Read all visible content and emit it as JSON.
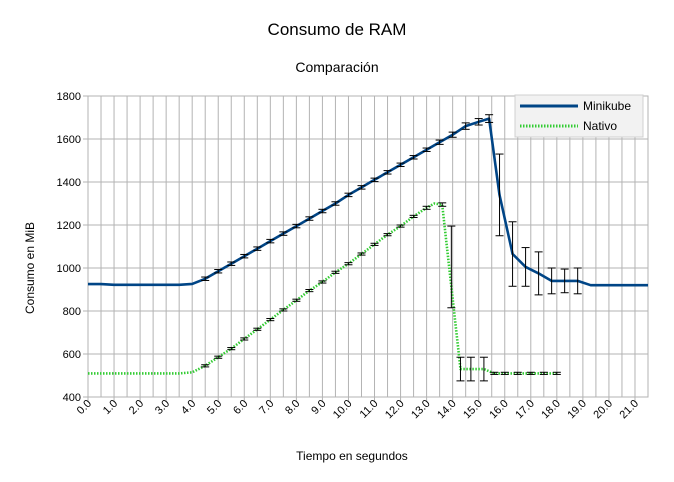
{
  "chart_data": {
    "type": "line",
    "title": "Consumo de RAM",
    "subtitle": "Comparación",
    "xlabel": "Tiempo en segundos",
    "ylabel": "Consumo en MiB",
    "ylim": [
      400,
      1800
    ],
    "yticks": [
      400,
      600,
      800,
      1000,
      1200,
      1400,
      1600,
      1800
    ],
    "xlim": [
      0,
      21.5
    ],
    "xticks": [
      "0.0",
      "1.0",
      "2.0",
      "3.0",
      "4.0",
      "5.0",
      "6.0",
      "7.0",
      "8.0",
      "9.0",
      "10.0",
      "11.0",
      "12.0",
      "13.0",
      "14.0",
      "15.0",
      "16.0",
      "17.0",
      "18.0",
      "19.0",
      "20.0",
      "21.0"
    ],
    "grid": true,
    "legend_position": "top-right",
    "series": [
      {
        "name": "Minikube",
        "color": "#004586",
        "style": "solid",
        "points": [
          [
            0,
            925
          ],
          [
            0.5,
            925
          ],
          [
            1,
            922
          ],
          [
            1.5,
            922
          ],
          [
            2,
            922
          ],
          [
            2.5,
            922
          ],
          [
            3,
            922
          ],
          [
            3.5,
            922
          ],
          [
            4,
            926
          ],
          [
            4.5,
            950
          ],
          [
            5,
            985
          ],
          [
            5.5,
            1020
          ],
          [
            6,
            1055
          ],
          [
            6.5,
            1090
          ],
          [
            7,
            1125
          ],
          [
            7.5,
            1160
          ],
          [
            8,
            1195
          ],
          [
            8.5,
            1230
          ],
          [
            9,
            1265
          ],
          [
            9.5,
            1300
          ],
          [
            10,
            1340
          ],
          [
            10.5,
            1375
          ],
          [
            11,
            1410
          ],
          [
            11.5,
            1445
          ],
          [
            12,
            1480
          ],
          [
            12.5,
            1515
          ],
          [
            13,
            1550
          ],
          [
            13.5,
            1585
          ],
          [
            14,
            1620
          ],
          [
            14.5,
            1660
          ],
          [
            15,
            1680
          ],
          [
            15.4,
            1695
          ],
          [
            15.8,
            1340
          ],
          [
            16.3,
            1065
          ],
          [
            16.8,
            1005
          ],
          [
            17.3,
            975
          ],
          [
            17.8,
            940
          ],
          [
            18.3,
            940
          ],
          [
            18.8,
            940
          ],
          [
            19.3,
            920
          ],
          [
            19.8,
            920
          ],
          [
            20.3,
            920
          ],
          [
            20.8,
            920
          ],
          [
            21.5,
            920
          ]
        ],
        "error_bars": [
          [
            4.5,
            950,
            8
          ],
          [
            5,
            985,
            8
          ],
          [
            5.5,
            1020,
            8
          ],
          [
            6,
            1055,
            8
          ],
          [
            6.5,
            1090,
            8
          ],
          [
            7,
            1125,
            8
          ],
          [
            7.5,
            1160,
            8
          ],
          [
            8,
            1195,
            8
          ],
          [
            8.5,
            1230,
            8
          ],
          [
            9,
            1265,
            8
          ],
          [
            9.5,
            1300,
            8
          ],
          [
            10,
            1340,
            8
          ],
          [
            10.5,
            1375,
            8
          ],
          [
            11,
            1410,
            8
          ],
          [
            11.5,
            1445,
            8
          ],
          [
            12,
            1480,
            8
          ],
          [
            12.5,
            1515,
            8
          ],
          [
            13,
            1550,
            8
          ],
          [
            13.5,
            1585,
            10
          ],
          [
            14,
            1620,
            12
          ],
          [
            14.5,
            1660,
            15
          ],
          [
            15,
            1680,
            15
          ],
          [
            15.4,
            1695,
            18
          ],
          [
            15.8,
            1340,
            190
          ],
          [
            16.3,
            1065,
            150
          ],
          [
            16.8,
            1005,
            90
          ],
          [
            17.3,
            975,
            100
          ],
          [
            17.8,
            940,
            60
          ],
          [
            18.3,
            940,
            55
          ],
          [
            18.8,
            940,
            60
          ]
        ]
      },
      {
        "name": "Nativo",
        "color": "#33cc33",
        "style": "dotted",
        "points": [
          [
            0,
            510
          ],
          [
            0.5,
            510
          ],
          [
            1,
            510
          ],
          [
            1.5,
            510
          ],
          [
            2,
            510
          ],
          [
            2.5,
            510
          ],
          [
            3,
            510
          ],
          [
            3.5,
            510
          ],
          [
            4,
            515
          ],
          [
            4.5,
            545
          ],
          [
            5,
            585
          ],
          [
            5.5,
            625
          ],
          [
            6,
            670
          ],
          [
            6.5,
            715
          ],
          [
            7,
            760
          ],
          [
            7.5,
            805
          ],
          [
            8,
            850
          ],
          [
            8.5,
            895
          ],
          [
            9,
            935
          ],
          [
            9.5,
            980
          ],
          [
            10,
            1020
          ],
          [
            10.5,
            1065
          ],
          [
            11,
            1110
          ],
          [
            11.5,
            1155
          ],
          [
            12,
            1195
          ],
          [
            12.5,
            1240
          ],
          [
            13,
            1280
          ],
          [
            13.3,
            1300
          ],
          [
            13.6,
            1295
          ],
          [
            14.3,
            530
          ],
          [
            14.7,
            530
          ],
          [
            15.2,
            530
          ],
          [
            15.6,
            510
          ],
          [
            16,
            510
          ],
          [
            16.5,
            510
          ],
          [
            17,
            510
          ],
          [
            17.5,
            510
          ],
          [
            18,
            510
          ]
        ],
        "error_bars": [
          [
            4.5,
            545,
            5
          ],
          [
            5,
            585,
            5
          ],
          [
            5.5,
            625,
            5
          ],
          [
            6,
            670,
            5
          ],
          [
            6.5,
            715,
            5
          ],
          [
            7,
            760,
            5
          ],
          [
            7.5,
            805,
            5
          ],
          [
            8,
            850,
            5
          ],
          [
            8.5,
            895,
            5
          ],
          [
            9,
            935,
            5
          ],
          [
            9.5,
            980,
            5
          ],
          [
            10,
            1020,
            5
          ],
          [
            10.5,
            1065,
            5
          ],
          [
            11,
            1110,
            5
          ],
          [
            11.5,
            1155,
            5
          ],
          [
            12,
            1195,
            5
          ],
          [
            12.5,
            1240,
            5
          ],
          [
            13,
            1280,
            7
          ],
          [
            13.6,
            1295,
            8
          ],
          [
            13.95,
            1005,
            190
          ],
          [
            14.3,
            530,
            55
          ],
          [
            14.7,
            530,
            55
          ],
          [
            15.2,
            530,
            55
          ],
          [
            15.6,
            510,
            5
          ],
          [
            16,
            510,
            5
          ],
          [
            16.5,
            510,
            5
          ],
          [
            17,
            510,
            5
          ],
          [
            17.5,
            510,
            5
          ],
          [
            18,
            510,
            5
          ]
        ]
      }
    ]
  }
}
